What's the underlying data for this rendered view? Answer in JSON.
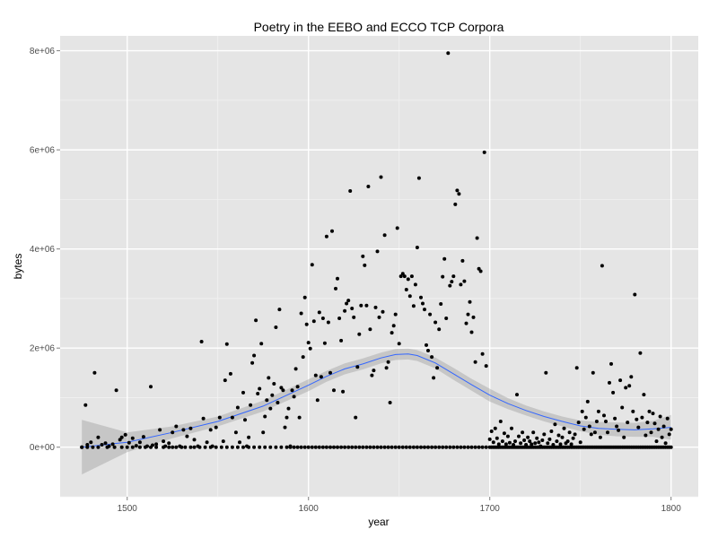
{
  "chart_data": {
    "type": "scatter",
    "title": "Poetry in the EEBO and ECCO TCP Corpora",
    "xlabel": "year",
    "ylabel": "bytes",
    "xlim": [
      1463,
      1815
    ],
    "ylim": [
      -1000000,
      8300000
    ],
    "x_ticks": [
      1500,
      1600,
      1700,
      1800
    ],
    "x_tick_labels": [
      "1500",
      "1600",
      "1700",
      "1800"
    ],
    "y_ticks": [
      0,
      2000000,
      4000000,
      6000000,
      8000000
    ],
    "y_tick_labels": [
      "0e+00",
      "2e+06",
      "4e+06",
      "6e+06",
      "8e+06"
    ],
    "grid": true,
    "colors": {
      "panel": "#e5e5e5",
      "grid_major": "#ffffff",
      "grid_minor": "#f2f2f2",
      "points": "#000000",
      "smooth_line": "#3366ff",
      "confidence_band": "#999999"
    },
    "points": [
      [
        1475,
        0
      ],
      [
        1477,
        850000
      ],
      [
        1478,
        50000
      ],
      [
        1480,
        100000
      ],
      [
        1482,
        1500000
      ],
      [
        1484,
        200000
      ],
      [
        1486,
        50000
      ],
      [
        1488,
        80000
      ],
      [
        1490,
        20000
      ],
      [
        1492,
        60000
      ],
      [
        1494,
        1150000
      ],
      [
        1496,
        150000
      ],
      [
        1497,
        200000
      ],
      [
        1499,
        250000
      ],
      [
        1501,
        90000
      ],
      [
        1503,
        180000
      ],
      [
        1505,
        30000
      ],
      [
        1507,
        100000
      ],
      [
        1509,
        210000
      ],
      [
        1511,
        20000
      ],
      [
        1513,
        1220000
      ],
      [
        1514,
        40000
      ],
      [
        1516,
        60000
      ],
      [
        1518,
        350000
      ],
      [
        1520,
        120000
      ],
      [
        1521,
        20000
      ],
      [
        1523,
        80000
      ],
      [
        1525,
        300000
      ],
      [
        1527,
        420000
      ],
      [
        1529,
        20000
      ],
      [
        1531,
        350000
      ],
      [
        1533,
        220000
      ],
      [
        1535,
        380000
      ],
      [
        1537,
        150000
      ],
      [
        1539,
        20000
      ],
      [
        1541,
        2130000
      ],
      [
        1542,
        580000
      ],
      [
        1544,
        100000
      ],
      [
        1546,
        350000
      ],
      [
        1547,
        20000
      ],
      [
        1549,
        400000
      ],
      [
        1551,
        600000
      ],
      [
        1553,
        120000
      ],
      [
        1554,
        1350000
      ],
      [
        1555,
        2080000
      ],
      [
        1557,
        1480000
      ],
      [
        1558,
        600000
      ],
      [
        1560,
        300000
      ],
      [
        1561,
        800000
      ],
      [
        1562,
        100000
      ],
      [
        1564,
        1100000
      ],
      [
        1565,
        550000
      ],
      [
        1566,
        20000
      ],
      [
        1567,
        200000
      ],
      [
        1568,
        850000
      ],
      [
        1569,
        1700000
      ],
      [
        1570,
        1850000
      ],
      [
        1571,
        2560000
      ],
      [
        1572,
        1080000
      ],
      [
        1573,
        1180000
      ],
      [
        1574,
        2090000
      ],
      [
        1575,
        300000
      ],
      [
        1576,
        620000
      ],
      [
        1577,
        950000
      ],
      [
        1578,
        1400000
      ],
      [
        1579,
        780000
      ],
      [
        1580,
        1050000
      ],
      [
        1581,
        1280000
      ],
      [
        1582,
        2420000
      ],
      [
        1583,
        900000
      ],
      [
        1584,
        2780000
      ],
      [
        1585,
        1200000
      ],
      [
        1586,
        1150000
      ],
      [
        1587,
        400000
      ],
      [
        1588,
        600000
      ],
      [
        1589,
        780000
      ],
      [
        1590,
        20000
      ],
      [
        1591,
        1150000
      ],
      [
        1592,
        1020000
      ],
      [
        1593,
        1580000
      ],
      [
        1594,
        1220000
      ],
      [
        1595,
        600000
      ],
      [
        1596,
        2700000
      ],
      [
        1597,
        1820000
      ],
      [
        1598,
        3020000
      ],
      [
        1599,
        2480000
      ],
      [
        1600,
        2110000
      ],
      [
        1601,
        1990000
      ],
      [
        1602,
        3680000
      ],
      [
        1603,
        2540000
      ],
      [
        1604,
        1450000
      ],
      [
        1605,
        950000
      ],
      [
        1606,
        2720000
      ],
      [
        1607,
        1420000
      ],
      [
        1608,
        2600000
      ],
      [
        1609,
        2100000
      ],
      [
        1610,
        4250000
      ],
      [
        1611,
        2520000
      ],
      [
        1612,
        1500000
      ],
      [
        1613,
        4360000
      ],
      [
        1614,
        1150000
      ],
      [
        1615,
        3200000
      ],
      [
        1616,
        3400000
      ],
      [
        1617,
        2600000
      ],
      [
        1618,
        2150000
      ],
      [
        1619,
        1120000
      ],
      [
        1620,
        2750000
      ],
      [
        1621,
        2900000
      ],
      [
        1622,
        2960000
      ],
      [
        1623,
        5170000
      ],
      [
        1624,
        2800000
      ],
      [
        1625,
        2620000
      ],
      [
        1626,
        600000
      ],
      [
        1627,
        1620000
      ],
      [
        1628,
        2280000
      ],
      [
        1629,
        2860000
      ],
      [
        1630,
        3850000
      ],
      [
        1631,
        3670000
      ],
      [
        1632,
        2860000
      ],
      [
        1633,
        5260000
      ],
      [
        1634,
        2380000
      ],
      [
        1635,
        1450000
      ],
      [
        1636,
        1550000
      ],
      [
        1637,
        2820000
      ],
      [
        1638,
        3950000
      ],
      [
        1639,
        2620000
      ],
      [
        1640,
        5450000
      ],
      [
        1641,
        2730000
      ],
      [
        1642,
        4280000
      ],
      [
        1643,
        1600000
      ],
      [
        1644,
        1720000
      ],
      [
        1645,
        900000
      ],
      [
        1646,
        2310000
      ],
      [
        1647,
        2450000
      ],
      [
        1648,
        2680000
      ],
      [
        1649,
        4420000
      ],
      [
        1650,
        2090000
      ],
      [
        1651,
        3450000
      ],
      [
        1652,
        3500000
      ],
      [
        1653,
        3450000
      ],
      [
        1654,
        3180000
      ],
      [
        1655,
        3390000
      ],
      [
        1656,
        3050000
      ],
      [
        1657,
        3450000
      ],
      [
        1658,
        2850000
      ],
      [
        1659,
        3280000
      ],
      [
        1660,
        4030000
      ],
      [
        1661,
        5430000
      ],
      [
        1662,
        3020000
      ],
      [
        1663,
        2900000
      ],
      [
        1664,
        2780000
      ],
      [
        1665,
        2060000
      ],
      [
        1666,
        1950000
      ],
      [
        1667,
        2680000
      ],
      [
        1668,
        1820000
      ],
      [
        1669,
        1400000
      ],
      [
        1670,
        2520000
      ],
      [
        1671,
        1600000
      ],
      [
        1672,
        2380000
      ],
      [
        1673,
        2890000
      ],
      [
        1674,
        3440000
      ],
      [
        1675,
        3800000
      ],
      [
        1676,
        2600000
      ],
      [
        1677,
        7950000
      ],
      [
        1678,
        3260000
      ],
      [
        1679,
        3340000
      ],
      [
        1680,
        3450000
      ],
      [
        1681,
        4900000
      ],
      [
        1682,
        5180000
      ],
      [
        1683,
        5110000
      ],
      [
        1684,
        3280000
      ],
      [
        1685,
        3760000
      ],
      [
        1686,
        3350000
      ],
      [
        1687,
        2500000
      ],
      [
        1688,
        2680000
      ],
      [
        1689,
        2930000
      ],
      [
        1690,
        2320000
      ],
      [
        1691,
        2620000
      ],
      [
        1692,
        1720000
      ],
      [
        1693,
        4220000
      ],
      [
        1694,
        3600000
      ],
      [
        1695,
        3550000
      ],
      [
        1696,
        1880000
      ],
      [
        1697,
        5950000
      ],
      [
        1698,
        1640000
      ],
      [
        1700,
        160000
      ],
      [
        1701,
        320000
      ],
      [
        1702,
        100000
      ],
      [
        1703,
        380000
      ],
      [
        1704,
        180000
      ],
      [
        1705,
        60000
      ],
      [
        1706,
        520000
      ],
      [
        1707,
        120000
      ],
      [
        1708,
        280000
      ],
      [
        1709,
        60000
      ],
      [
        1710,
        220000
      ],
      [
        1711,
        90000
      ],
      [
        1712,
        380000
      ],
      [
        1713,
        50000
      ],
      [
        1714,
        120000
      ],
      [
        1715,
        1060000
      ],
      [
        1716,
        220000
      ],
      [
        1717,
        80000
      ],
      [
        1718,
        300000
      ],
      [
        1719,
        140000
      ],
      [
        1720,
        50000
      ],
      [
        1721,
        200000
      ],
      [
        1722,
        120000
      ],
      [
        1723,
        60000
      ],
      [
        1724,
        300000
      ],
      [
        1725,
        80000
      ],
      [
        1726,
        180000
      ],
      [
        1727,
        100000
      ],
      [
        1728,
        20000
      ],
      [
        1729,
        140000
      ],
      [
        1730,
        260000
      ],
      [
        1731,
        1500000
      ],
      [
        1732,
        80000
      ],
      [
        1733,
        160000
      ],
      [
        1734,
        320000
      ],
      [
        1735,
        50000
      ],
      [
        1736,
        460000
      ],
      [
        1737,
        120000
      ],
      [
        1738,
        240000
      ],
      [
        1739,
        60000
      ],
      [
        1740,
        200000
      ],
      [
        1741,
        380000
      ],
      [
        1742,
        80000
      ],
      [
        1743,
        120000
      ],
      [
        1744,
        300000
      ],
      [
        1745,
        60000
      ],
      [
        1746,
        180000
      ],
      [
        1747,
        260000
      ],
      [
        1748,
        1600000
      ],
      [
        1749,
        500000
      ],
      [
        1750,
        100000
      ],
      [
        1751,
        720000
      ],
      [
        1752,
        360000
      ],
      [
        1753,
        600000
      ],
      [
        1754,
        920000
      ],
      [
        1755,
        420000
      ],
      [
        1756,
        260000
      ],
      [
        1757,
        1500000
      ],
      [
        1758,
        300000
      ],
      [
        1759,
        520000
      ],
      [
        1760,
        720000
      ],
      [
        1761,
        200000
      ],
      [
        1762,
        3660000
      ],
      [
        1763,
        640000
      ],
      [
        1764,
        520000
      ],
      [
        1765,
        300000
      ],
      [
        1766,
        1300000
      ],
      [
        1767,
        1680000
      ],
      [
        1768,
        1100000
      ],
      [
        1769,
        580000
      ],
      [
        1770,
        420000
      ],
      [
        1771,
        340000
      ],
      [
        1772,
        1350000
      ],
      [
        1773,
        800000
      ],
      [
        1774,
        200000
      ],
      [
        1775,
        1200000
      ],
      [
        1776,
        500000
      ],
      [
        1777,
        1240000
      ],
      [
        1778,
        1420000
      ],
      [
        1779,
        720000
      ],
      [
        1780,
        3080000
      ],
      [
        1781,
        560000
      ],
      [
        1782,
        400000
      ],
      [
        1783,
        1900000
      ],
      [
        1784,
        600000
      ],
      [
        1785,
        1060000
      ],
      [
        1786,
        240000
      ],
      [
        1787,
        500000
      ],
      [
        1788,
        720000
      ],
      [
        1789,
        300000
      ],
      [
        1790,
        680000
      ],
      [
        1791,
        480000
      ],
      [
        1792,
        120000
      ],
      [
        1793,
        360000
      ],
      [
        1794,
        620000
      ],
      [
        1795,
        200000
      ],
      [
        1796,
        420000
      ],
      [
        1797,
        80000
      ],
      [
        1798,
        580000
      ],
      [
        1799,
        260000
      ],
      [
        1800,
        360000
      ]
    ],
    "zero_years": [
      1475,
      1478,
      1481,
      1484,
      1489,
      1493,
      1497,
      1500,
      1503,
      1507,
      1510,
      1513,
      1516,
      1520,
      1523,
      1525,
      1527,
      1530,
      1532,
      1535,
      1537,
      1540,
      1543,
      1546,
      1549,
      1552,
      1555,
      1558,
      1561,
      1564,
      1567,
      1570,
      1573,
      1576,
      1579,
      1582,
      1585,
      1588,
      1590,
      1592,
      1594,
      1596,
      1598,
      1600,
      1602,
      1604,
      1606,
      1608,
      1610,
      1612,
      1614,
      1616,
      1618,
      1620,
      1622,
      1624,
      1626,
      1628,
      1630,
      1632,
      1634,
      1636,
      1638,
      1640,
      1642,
      1644,
      1646,
      1648,
      1650,
      1652,
      1654,
      1656,
      1658,
      1660,
      1662,
      1664,
      1666,
      1668,
      1670,
      1672,
      1674,
      1676,
      1678,
      1680,
      1682,
      1684,
      1686,
      1688,
      1690,
      1692,
      1694,
      1696,
      1698,
      1700,
      1701,
      1702,
      1703,
      1704,
      1705,
      1706,
      1707,
      1708,
      1709,
      1710,
      1711,
      1712,
      1713,
      1714,
      1715,
      1716,
      1717,
      1718,
      1719,
      1720,
      1721,
      1722,
      1723,
      1724,
      1725,
      1726,
      1727,
      1728,
      1729,
      1730,
      1731,
      1732,
      1733,
      1734,
      1735,
      1736,
      1737,
      1738,
      1739,
      1740,
      1741,
      1742,
      1743,
      1744,
      1745,
      1746,
      1747,
      1748,
      1749,
      1750,
      1751,
      1752,
      1753,
      1754,
      1755,
      1756,
      1757,
      1758,
      1759,
      1760,
      1761,
      1762,
      1763,
      1764,
      1765,
      1766,
      1767,
      1768,
      1769,
      1770,
      1771,
      1772,
      1773,
      1774,
      1775,
      1776,
      1777,
      1778,
      1779,
      1780,
      1781,
      1782,
      1783,
      1784,
      1785,
      1786,
      1787,
      1788,
      1789,
      1790,
      1791,
      1792,
      1793,
      1794,
      1795,
      1796,
      1797,
      1798,
      1799,
      1800
    ],
    "smooth": {
      "x": [
        1475,
        1500,
        1525,
        1550,
        1575,
        1600,
        1610,
        1620,
        1630,
        1640,
        1648,
        1655,
        1660,
        1670,
        1680,
        1690,
        1700,
        1710,
        1720,
        1730,
        1740,
        1750,
        1760,
        1770,
        1780,
        1790,
        1800
      ],
      "y": [
        0,
        100000,
        300000,
        520000,
        830000,
        1250000,
        1430000,
        1580000,
        1680000,
        1800000,
        1870000,
        1880000,
        1850000,
        1700000,
        1480000,
        1260000,
        1050000,
        880000,
        740000,
        620000,
        520000,
        430000,
        380000,
        360000,
        350000,
        370000,
        400000
      ],
      "lower": [
        -550000,
        -100000,
        180000,
        420000,
        720000,
        1130000,
        1320000,
        1470000,
        1570000,
        1690000,
        1760000,
        1770000,
        1740000,
        1590000,
        1360000,
        1140000,
        920000,
        770000,
        640000,
        520000,
        420000,
        320000,
        250000,
        220000,
        210000,
        210000,
        150000
      ],
      "upper": [
        550000,
        300000,
        420000,
        620000,
        940000,
        1370000,
        1540000,
        1690000,
        1790000,
        1910000,
        1980000,
        1990000,
        1960000,
        1810000,
        1600000,
        1380000,
        1180000,
        990000,
        840000,
        720000,
        620000,
        540000,
        510000,
        500000,
        490000,
        530000,
        650000
      ]
    }
  }
}
